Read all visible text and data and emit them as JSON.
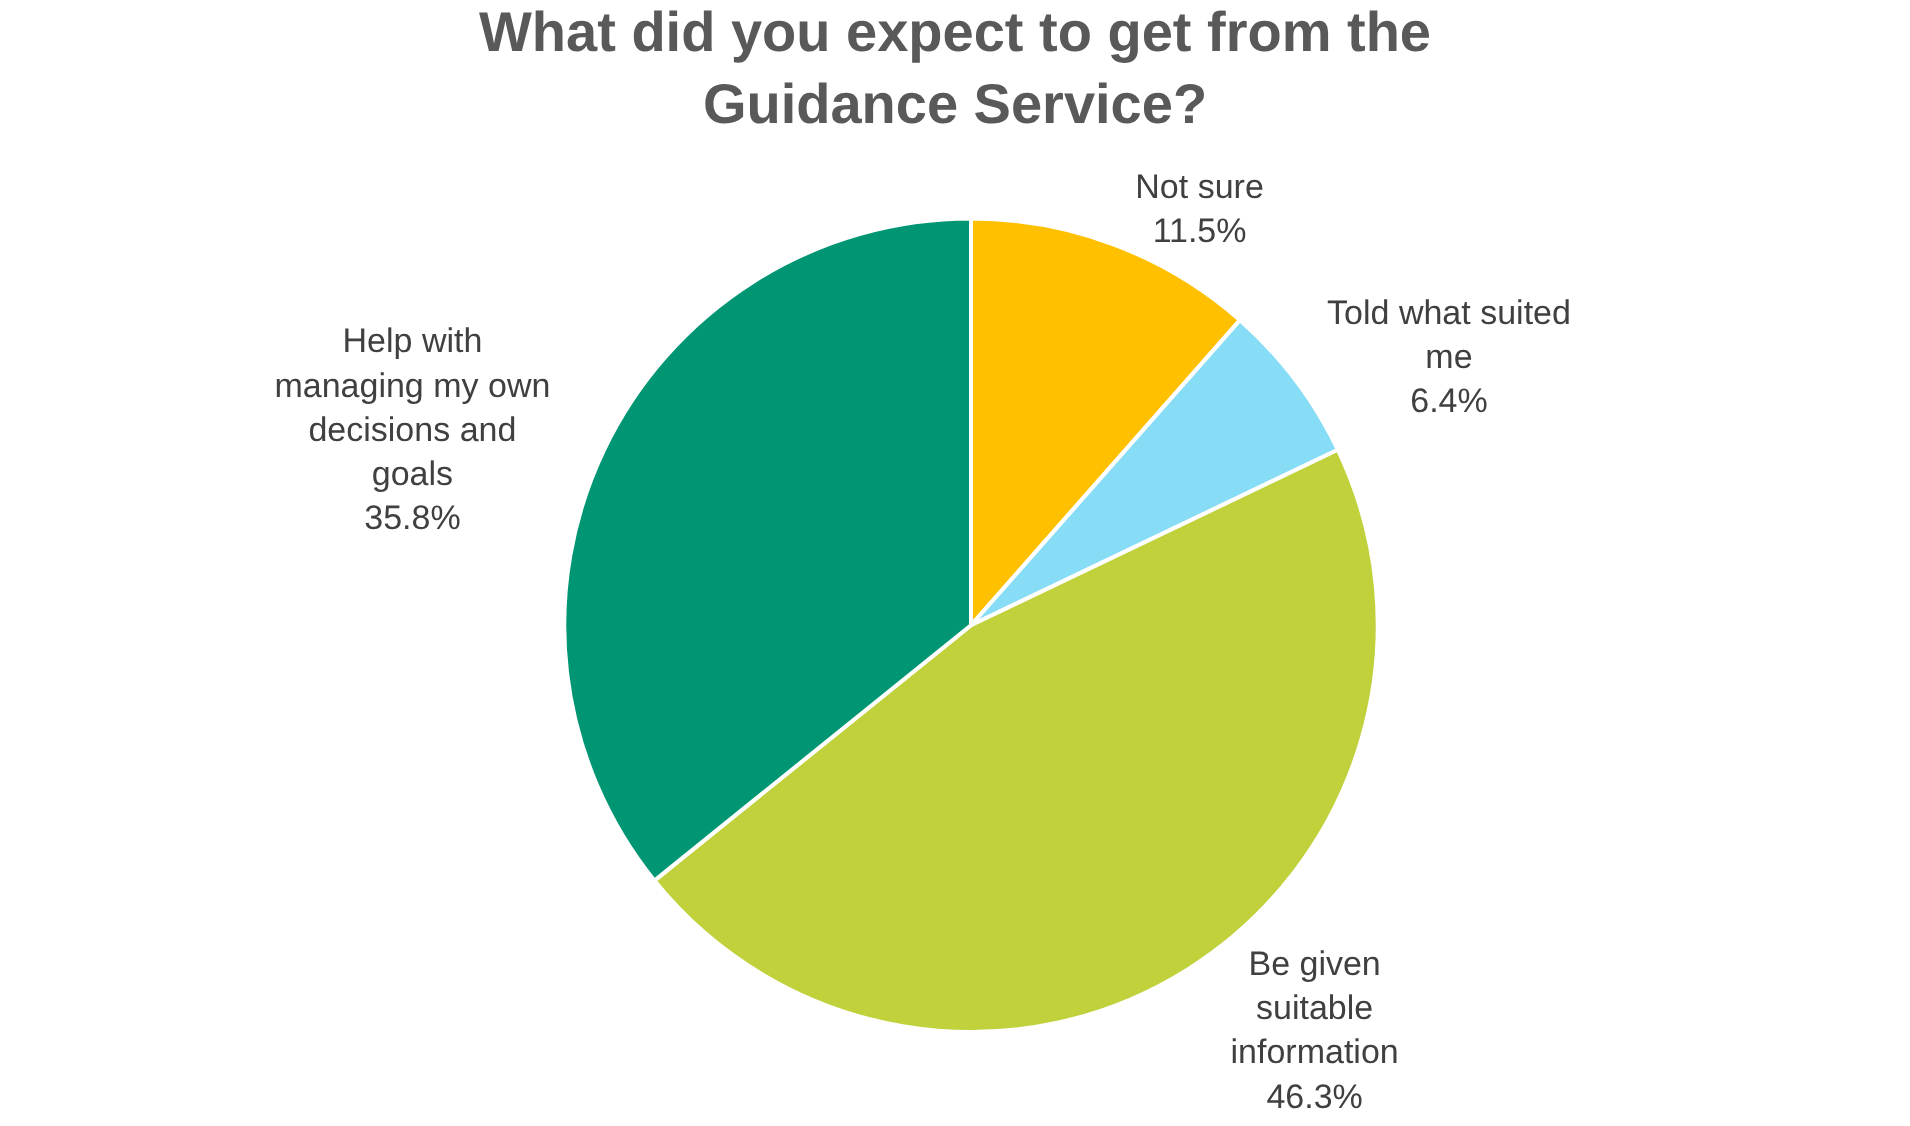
{
  "chart_data": {
    "type": "pie",
    "title": "What did you expect to get from the Guidance Service?",
    "categories": [
      "Not sure",
      "Told what suited me",
      "Be given suitable information",
      "Help with managing my own decisions and goals"
    ],
    "values": [
      11.5,
      6.4,
      46.3,
      35.8
    ],
    "value_labels": [
      "11.5%",
      "6.4%",
      "46.3%",
      "35.8%"
    ],
    "colors": [
      "#ffc000",
      "#87dcf6",
      "#c0d13c",
      "#009673"
    ],
    "legend": false
  }
}
